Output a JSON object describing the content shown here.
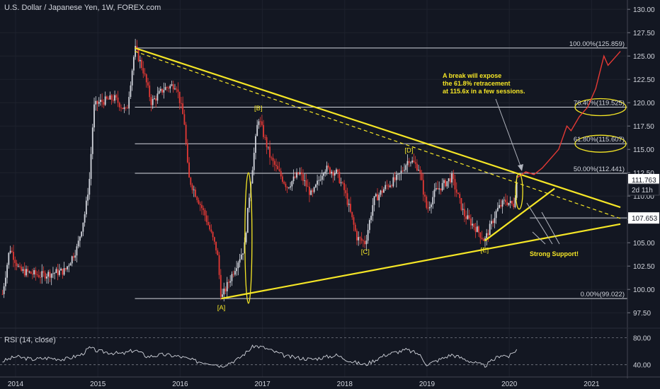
{
  "header": {
    "title": "U.S. Dollar / Japanese Yen, 1W, FOREX.com"
  },
  "rsi": {
    "label": "RSI (14, close)",
    "tick_high": "80.00",
    "tick_low": "40.00"
  },
  "chart_data": {
    "type": "candlestick",
    "title": "U.S. Dollar / Japanese Yen, 1W, FOREX.com",
    "y_ticks": [
      97.5,
      100.0,
      102.5,
      105.0,
      107.5,
      110.0,
      112.5,
      115.0,
      117.5,
      120.0,
      122.5,
      125.0,
      127.5,
      130.0
    ],
    "x_ticks": [
      "2014",
      "2015",
      "2016",
      "2017",
      "2018",
      "2019",
      "2020",
      "2021"
    ],
    "ylim": [
      96,
      131
    ],
    "price_anchors": [
      [
        2013.84,
        99.5
      ],
      [
        2013.93,
        104.5
      ],
      [
        2014.05,
        102.0
      ],
      [
        2014.3,
        101.5
      ],
      [
        2014.6,
        102.0
      ],
      [
        2014.75,
        104.5
      ],
      [
        2014.85,
        108.5
      ],
      [
        2014.9,
        112.0
      ],
      [
        2014.95,
        119.5
      ],
      [
        2015.0,
        120.0
      ],
      [
        2015.2,
        120.5
      ],
      [
        2015.35,
        119.0
      ],
      [
        2015.45,
        125.859
      ],
      [
        2015.55,
        123.5
      ],
      [
        2015.65,
        120.0
      ],
      [
        2015.8,
        121.5
      ],
      [
        2015.95,
        122.0
      ],
      [
        2016.05,
        118.0
      ],
      [
        2016.1,
        112.0
      ],
      [
        2016.3,
        108.0
      ],
      [
        2016.45,
        104.0
      ],
      [
        2016.5,
        99.022
      ],
      [
        2016.6,
        101.0
      ],
      [
        2016.7,
        103.0
      ],
      [
        2016.78,
        104.5
      ],
      [
        2016.85,
        111.0
      ],
      [
        2016.95,
        118.5
      ],
      [
        2017.1,
        114.0
      ],
      [
        2017.3,
        111.0
      ],
      [
        2017.45,
        112.5
      ],
      [
        2017.6,
        110.0
      ],
      [
        2017.75,
        113.0
      ],
      [
        2017.9,
        112.5
      ],
      [
        2018.0,
        110.5
      ],
      [
        2018.15,
        105.5
      ],
      [
        2018.25,
        105.0
      ],
      [
        2018.35,
        109.5
      ],
      [
        2018.5,
        111.0
      ],
      [
        2018.65,
        112.0
      ],
      [
        2018.78,
        114.0
      ],
      [
        2018.9,
        113.0
      ],
      [
        2019.0,
        108.5
      ],
      [
        2019.1,
        110.5
      ],
      [
        2019.3,
        112.0
      ],
      [
        2019.45,
        108.0
      ],
      [
        2019.6,
        106.5
      ],
      [
        2019.7,
        105.2
      ],
      [
        2019.85,
        108.5
      ],
      [
        2019.95,
        109.5
      ],
      [
        2020.05,
        109.0
      ],
      [
        2020.1,
        112.0
      ]
    ],
    "horizontal_levels": [
      {
        "label": "100.00%(125.859)",
        "value": 125.859,
        "highlight": false
      },
      {
        "label": "76.40%(119.525)",
        "value": 119.525,
        "highlight": true
      },
      {
        "label": "61.80%(115.607)",
        "value": 115.607,
        "highlight": true
      },
      {
        "label": "50.00%(112.441)",
        "value": 112.441,
        "highlight": false
      },
      {
        "label": "0.00%(99.022)",
        "value": 99.022,
        "highlight": false
      }
    ],
    "price_markers": [
      {
        "label": "111.763",
        "value": 111.763,
        "style": "white"
      },
      {
        "label": "2d 11h",
        "value": 110.7,
        "style": "dark"
      },
      {
        "label": "107.653",
        "value": 107.653,
        "style": "white"
      }
    ],
    "wave_labels": [
      {
        "label": "[A]",
        "x": 2016.5,
        "y": 99.022
      },
      {
        "label": "[B]",
        "x": 2016.95,
        "y": 118.5
      },
      {
        "label": "[C]",
        "x": 2018.25,
        "y": 105.0
      },
      {
        "label": "[D]",
        "x": 2018.78,
        "y": 114.0
      },
      {
        "label": "[E]",
        "x": 2019.7,
        "y": 105.2
      }
    ],
    "annotations": [
      {
        "text": "A break will expose\nthe 61.8% retracement\nat 115.6x in a few sessions."
      },
      {
        "text": "Strong Support!"
      }
    ],
    "trend_lines": [
      {
        "name": "upper-resistance",
        "from": [
          2015.45,
          125.859
        ],
        "to": [
          2021.35,
          108.8
        ],
        "style": "solid"
      },
      {
        "name": "lower-support",
        "from": [
          2016.5,
          99.022
        ],
        "to": [
          2021.35,
          107.0
        ],
        "style": "solid"
      },
      {
        "name": "inner-dashed",
        "from": [
          2015.45,
          125.5
        ],
        "to": [
          2021.35,
          107.6
        ],
        "style": "dashed"
      },
      {
        "name": "minor-support",
        "from": [
          2019.7,
          105.2
        ],
        "to": [
          2020.55,
          110.8
        ],
        "style": "solid"
      }
    ],
    "projection": [
      [
        2020.1,
        112.0
      ],
      [
        2020.2,
        112.6
      ],
      [
        2020.3,
        112.3
      ],
      [
        2020.4,
        113.0
      ],
      [
        2020.5,
        114.0
      ],
      [
        2020.6,
        115.0
      ],
      [
        2020.7,
        117.5
      ],
      [
        2020.75,
        117.0
      ],
      [
        2020.85,
        118.5
      ],
      [
        2020.95,
        119.5
      ],
      [
        2021.05,
        121.5
      ],
      [
        2021.15,
        125.0
      ],
      [
        2021.2,
        124.0
      ],
      [
        2021.3,
        125.0
      ],
      [
        2021.35,
        125.5
      ]
    ],
    "rsi_anchors": [
      [
        2013.84,
        45
      ],
      [
        2014.0,
        52
      ],
      [
        2014.2,
        48
      ],
      [
        2014.4,
        50
      ],
      [
        2014.6,
        48
      ],
      [
        2014.8,
        55
      ],
      [
        2014.9,
        65
      ],
      [
        2015.0,
        60
      ],
      [
        2015.3,
        56
      ],
      [
        2015.45,
        62
      ],
      [
        2015.6,
        52
      ],
      [
        2015.8,
        55
      ],
      [
        2016.0,
        52
      ],
      [
        2016.2,
        45
      ],
      [
        2016.4,
        42
      ],
      [
        2016.5,
        38
      ],
      [
        2016.7,
        48
      ],
      [
        2016.9,
        68
      ],
      [
        2017.0,
        66
      ],
      [
        2017.3,
        52
      ],
      [
        2017.6,
        48
      ],
      [
        2017.9,
        54
      ],
      [
        2018.1,
        44
      ],
      [
        2018.25,
        40
      ],
      [
        2018.5,
        55
      ],
      [
        2018.75,
        62
      ],
      [
        2018.9,
        56
      ],
      [
        2019.0,
        40
      ],
      [
        2019.3,
        55
      ],
      [
        2019.6,
        42
      ],
      [
        2019.7,
        38
      ],
      [
        2019.9,
        55
      ],
      [
        2020.0,
        52
      ],
      [
        2020.1,
        64
      ]
    ],
    "rsi_ylim": [
      25,
      92
    ]
  }
}
